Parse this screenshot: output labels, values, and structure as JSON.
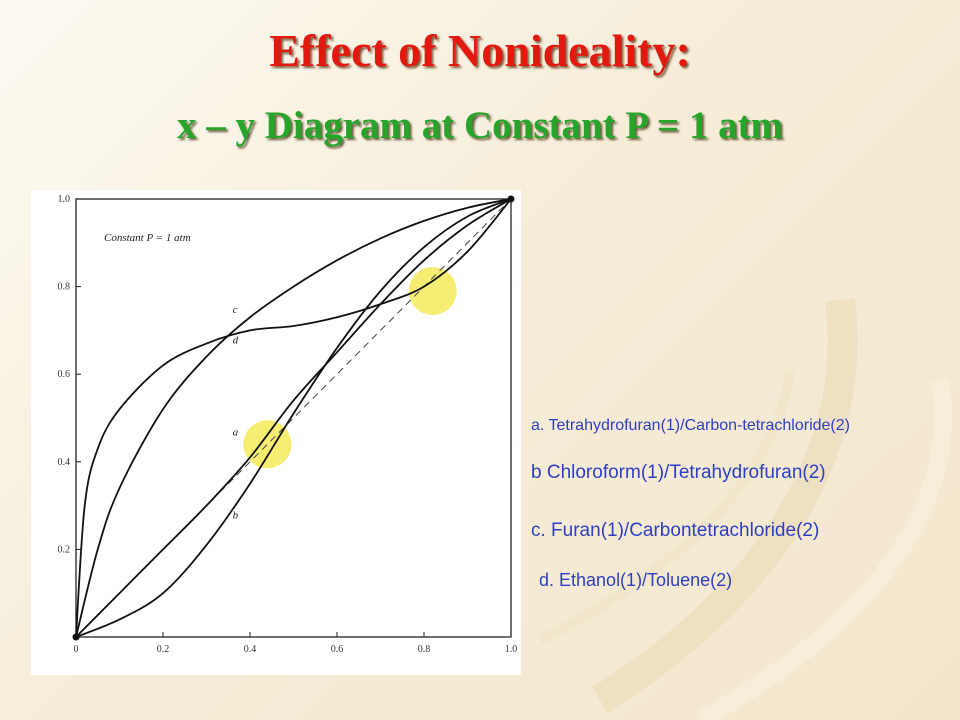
{
  "slide": {
    "title": "Effect of Nonideality:",
    "subtitle": "x – y Diagram at Constant P = 1 atm",
    "title_color": "#e3190f",
    "subtitle_color": "#27a52b",
    "legend_color": "#2e3fc4"
  },
  "legend": {
    "a": "a. Tetrahydrofuran(1)/Carbon-tetrachloride(2)",
    "b": "b   Chloroform(1)/Tetrahydrofuran(2)",
    "c": "c. Furan(1)/Carbontetrachloride(2)",
    "d": "d. Ethanol(1)/Toluene(2)"
  },
  "chart_data": {
    "type": "line",
    "annotation": "Constant P = 1 atm",
    "xlim": [
      0,
      1.0
    ],
    "ylim": [
      0,
      1.0
    ],
    "x_ticks": [
      "0",
      "0.2",
      "0.4",
      "0.6",
      "0.8",
      "1.0"
    ],
    "y_ticks": [
      "0.2",
      "0.4",
      "0.6",
      "0.8",
      "1.0"
    ],
    "y_tick_values": [
      0.2,
      0.4,
      0.6,
      0.8,
      1.0
    ],
    "x_tick_values": [
      0,
      0.2,
      0.4,
      0.6,
      0.8,
      1.0
    ],
    "grid": false,
    "reference_line": {
      "style": "dashed",
      "points": [
        [
          0,
          0
        ],
        [
          1,
          1
        ]
      ]
    },
    "highlights": [
      {
        "x": 0.44,
        "y": 0.44,
        "color": "#f4ec64"
      },
      {
        "x": 0.82,
        "y": 0.79,
        "color": "#f4ec64"
      }
    ],
    "series": [
      {
        "name": "a",
        "x": [
          0,
          0.1,
          0.2,
          0.3,
          0.4,
          0.5,
          0.6,
          0.7,
          0.8,
          0.9,
          1.0
        ],
        "y": [
          0,
          0.1,
          0.2,
          0.3,
          0.41,
          0.54,
          0.65,
          0.76,
          0.86,
          0.94,
          1.0
        ]
      },
      {
        "name": "b",
        "x": [
          0,
          0.1,
          0.2,
          0.3,
          0.4,
          0.5,
          0.6,
          0.7,
          0.8,
          0.9,
          1.0
        ],
        "y": [
          0,
          0.04,
          0.1,
          0.21,
          0.35,
          0.51,
          0.66,
          0.79,
          0.89,
          0.96,
          1.0
        ]
      },
      {
        "name": "c",
        "x": [
          0,
          0.05,
          0.1,
          0.2,
          0.3,
          0.4,
          0.5,
          0.6,
          0.7,
          0.8,
          0.9,
          1.0
        ],
        "y": [
          0,
          0.2,
          0.34,
          0.52,
          0.64,
          0.73,
          0.8,
          0.86,
          0.91,
          0.95,
          0.98,
          1.0
        ]
      },
      {
        "name": "d",
        "x": [
          0,
          0.02,
          0.05,
          0.1,
          0.2,
          0.3,
          0.4,
          0.5,
          0.6,
          0.7,
          0.8,
          0.9,
          1.0
        ],
        "y": [
          0,
          0.3,
          0.43,
          0.52,
          0.62,
          0.67,
          0.7,
          0.71,
          0.73,
          0.76,
          0.8,
          0.88,
          1.0
        ]
      }
    ],
    "curve_labels": [
      {
        "text": "a",
        "x": 0.36,
        "y": 0.46
      },
      {
        "text": "b",
        "x": 0.36,
        "y": 0.27
      },
      {
        "text": "c",
        "x": 0.36,
        "y": 0.74
      },
      {
        "text": "d",
        "x": 0.36,
        "y": 0.67
      }
    ]
  }
}
